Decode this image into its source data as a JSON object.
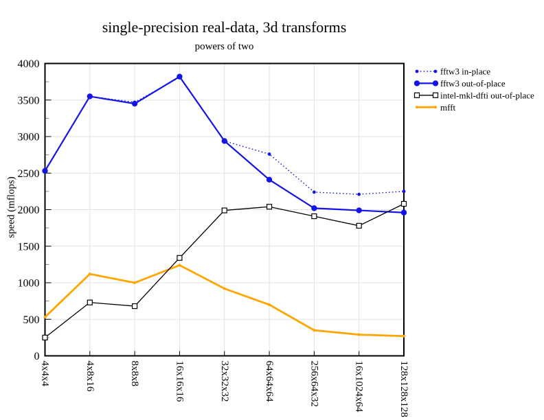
{
  "chart_data": {
    "type": "line",
    "title": "single-precision real-data, 3d transforms",
    "subtitle": "powers of two",
    "ylabel": "speed (mflops)",
    "xlabel": "",
    "ylim": [
      0,
      4000
    ],
    "ytick_step": 500,
    "yminor_step": 250,
    "grid": true,
    "legend_position": "outside-top-right",
    "categories": [
      "4x4x4",
      "4x8x16",
      "8x8x8",
      "16x16x16",
      "32x32x32",
      "64x64x64",
      "256x64x32",
      "16x1024x64",
      "128x128x128"
    ],
    "series": [
      {
        "name": "fftw3 in-place",
        "color": "#1414e6",
        "line": "dotted",
        "marker": "circle-small",
        "values": [
          2530,
          3550,
          3470,
          3810,
          2940,
          2760,
          2240,
          2210,
          2250
        ]
      },
      {
        "name": "fftw3 out-of-place",
        "color": "#1414e6",
        "line": "solid",
        "marker": "circle",
        "values": [
          2530,
          3550,
          3450,
          3820,
          2940,
          2410,
          2020,
          1990,
          1960
        ]
      },
      {
        "name": "intel-mkl-dfti out-of-place",
        "color": "#000000",
        "line": "solid-thin",
        "marker": "square-open",
        "values": [
          250,
          730,
          680,
          1340,
          1990,
          2040,
          1910,
          1780,
          2080
        ]
      },
      {
        "name": "mfft",
        "color": "#ffa500",
        "line": "solid-thick",
        "marker": "dot",
        "values": [
          530,
          1120,
          1000,
          1240,
          920,
          700,
          350,
          290,
          270
        ]
      }
    ]
  }
}
